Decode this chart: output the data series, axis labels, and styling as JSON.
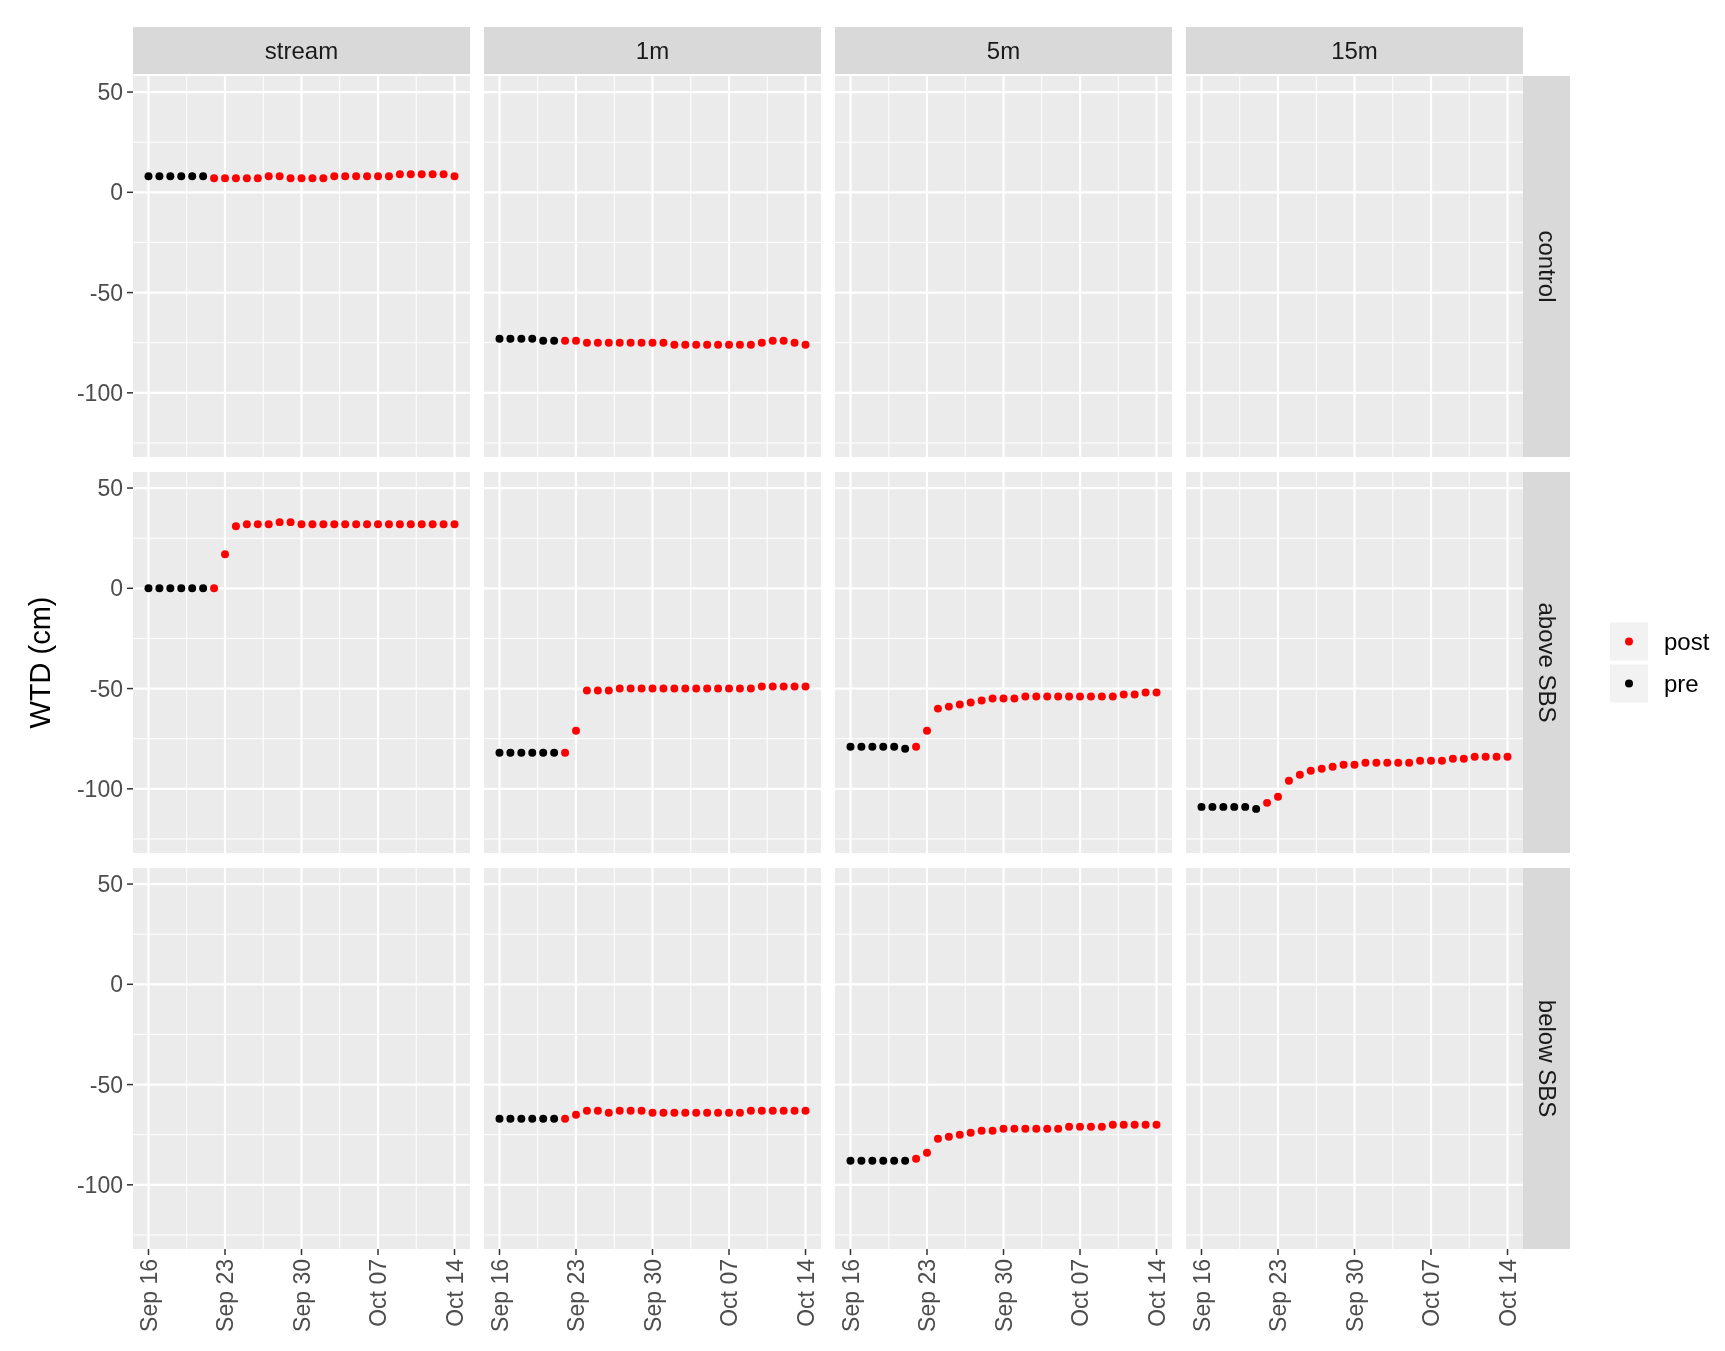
{
  "chart_data": [
    {
      "type": "scatter",
      "title": "stream",
      "x": [
        "--09-16",
        "--09-17",
        "--09-18",
        "--09-19",
        "--09-20",
        "--09-21",
        "--09-22",
        "--09-23",
        "--09-24",
        "--09-25",
        "--09-26",
        "--09-27",
        "--09-28",
        "--09-29",
        "--09-30",
        "--10-01",
        "--10-02",
        "--10-03",
        "--10-04",
        "--10-05",
        "--10-06",
        "--10-07",
        "--10-08",
        "--10-09",
        "--10-10",
        "--10-11",
        "--10-12",
        "--10-13",
        "--10-14"
      ],
      "series": [
        {
          "color": "#ff0000",
          "values": [
            null,
            null,
            null,
            null,
            null,
            null,
            7,
            7,
            7,
            7,
            7,
            8,
            8,
            7,
            7,
            7,
            7,
            8,
            8,
            8,
            8,
            8,
            8,
            9,
            9,
            9,
            9,
            9,
            8
          ]
        },
        {
          "color": "#000000",
          "values": [
            8,
            8,
            8,
            8,
            8,
            8,
            null,
            null,
            null,
            null,
            null,
            null,
            null,
            null,
            null,
            null,
            null,
            null,
            null,
            null,
            null,
            null,
            null,
            null,
            null,
            null,
            null,
            null,
            null
          ]
        }
      ],
      "xlim": [
        "--09-14T14:00",
        "--10-15T10:00"
      ],
      "ylim": [
        -132,
        58
      ],
      "xticks": [
        {
          "value": "--09-16",
          "label": null
        },
        {
          "value": "--09-23",
          "label": null
        },
        {
          "value": "--09-30",
          "label": null
        },
        {
          "value": "--10-07",
          "label": null
        },
        {
          "value": "--10-14",
          "label": null
        }
      ],
      "yticks": [
        -100,
        -50,
        0,
        50
      ],
      "grid": true,
      "marker": "circle",
      "tick_labels": "y"
    },
    {
      "type": "scatter",
      "title": "1m",
      "x": [
        "--09-16",
        "--09-17",
        "--09-18",
        "--09-19",
        "--09-20",
        "--09-21",
        "--09-22",
        "--09-23",
        "--09-24",
        "--09-25",
        "--09-26",
        "--09-27",
        "--09-28",
        "--09-29",
        "--09-30",
        "--10-01",
        "--10-02",
        "--10-03",
        "--10-04",
        "--10-05",
        "--10-06",
        "--10-07",
        "--10-08",
        "--10-09",
        "--10-10",
        "--10-11",
        "--10-12",
        "--10-13",
        "--10-14"
      ],
      "series": [
        {
          "color": "#ff0000",
          "values": [
            null,
            null,
            null,
            null,
            null,
            null,
            -74,
            -74,
            -75,
            -75,
            -75,
            -75,
            -75,
            -75,
            -75,
            -75,
            -76,
            -76,
            -76,
            -76,
            -76,
            -76,
            -76,
            -76,
            -75,
            -74,
            -74,
            -75,
            -76
          ]
        },
        {
          "color": "#000000",
          "values": [
            -73,
            -73,
            -73,
            -73,
            -74,
            -74,
            null,
            null,
            null,
            null,
            null,
            null,
            null,
            null,
            null,
            null,
            null,
            null,
            null,
            null,
            null,
            null,
            null,
            null,
            null,
            null,
            null,
            null,
            null
          ]
        }
      ],
      "xlim": [
        "--09-14T14:00",
        "--10-15T10:00"
      ],
      "ylim": [
        -132,
        58
      ],
      "xticks": [
        {
          "value": "--09-16",
          "label": null
        },
        {
          "value": "--09-23",
          "label": null
        },
        {
          "value": "--09-30",
          "label": null
        },
        {
          "value": "--10-07",
          "label": null
        },
        {
          "value": "--10-14",
          "label": null
        }
      ],
      "yticks": [
        -100,
        -50,
        0,
        50
      ],
      "grid": true,
      "marker": "circle",
      "tick_labels": false
    },
    {
      "type": "scatter",
      "title": "5m",
      "xlim": [
        "--09-14T14:00",
        "--10-15T10:00"
      ],
      "ylim": [
        -132,
        58
      ],
      "xticks": [
        {
          "value": "--09-16",
          "label": null
        },
        {
          "value": "--09-23",
          "label": null
        },
        {
          "value": "--09-30",
          "label": null
        },
        {
          "value": "--10-07",
          "label": null
        },
        {
          "value": "--10-14",
          "label": null
        }
      ],
      "yticks": [
        -100,
        -50,
        0,
        50
      ],
      "grid": true,
      "tick_labels": false
    },
    {
      "type": "scatter",
      "title": "15m",
      "annotations": [
        "control"
      ],
      "xlim": [
        "--09-14T14:00",
        "--10-15T10:00"
      ],
      "ylim": [
        -132,
        58
      ],
      "xticks": [
        {
          "value": "--09-16",
          "label": null
        },
        {
          "value": "--09-23",
          "label": null
        },
        {
          "value": "--09-30",
          "label": null
        },
        {
          "value": "--10-07",
          "label": null
        },
        {
          "value": "--10-14",
          "label": null
        }
      ],
      "yticks": [
        -100,
        -50,
        0,
        50
      ],
      "grid": true,
      "tick_labels": false
    },
    {
      "type": "scatter",
      "ylabel": "WTD (cm)",
      "x": [
        "--09-16",
        "--09-17",
        "--09-18",
        "--09-19",
        "--09-20",
        "--09-21",
        "--09-22",
        "--09-23",
        "--09-24",
        "--09-25",
        "--09-26",
        "--09-27",
        "--09-28",
        "--09-29",
        "--09-30",
        "--10-01",
        "--10-02",
        "--10-03",
        "--10-04",
        "--10-05",
        "--10-06",
        "--10-07",
        "--10-08",
        "--10-09",
        "--10-10",
        "--10-11",
        "--10-12",
        "--10-13",
        "--10-14"
      ],
      "series": [
        {
          "color": "#ff0000",
          "values": [
            null,
            null,
            null,
            null,
            null,
            null,
            0,
            17,
            31,
            32,
            32,
            32,
            33,
            33,
            32,
            32,
            32,
            32,
            32,
            32,
            32,
            32,
            32,
            32,
            32,
            32,
            32,
            32,
            32
          ]
        },
        {
          "color": "#000000",
          "values": [
            0,
            0,
            0,
            0,
            0,
            0,
            null,
            null,
            null,
            null,
            null,
            null,
            null,
            null,
            null,
            null,
            null,
            null,
            null,
            null,
            null,
            null,
            null,
            null,
            null,
            null,
            null,
            null,
            null
          ]
        }
      ],
      "xlim": [
        "--09-14T14:00",
        "--10-15T10:00"
      ],
      "ylim": [
        -132,
        58
      ],
      "xticks": [
        {
          "value": "--09-16",
          "label": null
        },
        {
          "value": "--09-23",
          "label": null
        },
        {
          "value": "--09-30",
          "label": null
        },
        {
          "value": "--10-07",
          "label": null
        },
        {
          "value": "--10-14",
          "label": null
        }
      ],
      "yticks": [
        -100,
        -50,
        0,
        50
      ],
      "grid": true,
      "marker": "circle",
      "tick_labels": "y"
    },
    {
      "type": "scatter",
      "x": [
        "--09-16",
        "--09-17",
        "--09-18",
        "--09-19",
        "--09-20",
        "--09-21",
        "--09-22",
        "--09-23",
        "--09-24",
        "--09-25",
        "--09-26",
        "--09-27",
        "--09-28",
        "--09-29",
        "--09-30",
        "--10-01",
        "--10-02",
        "--10-03",
        "--10-04",
        "--10-05",
        "--10-06",
        "--10-07",
        "--10-08",
        "--10-09",
        "--10-10",
        "--10-11",
        "--10-12",
        "--10-13",
        "--10-14"
      ],
      "series": [
        {
          "color": "#ff0000",
          "values": [
            null,
            null,
            null,
            null,
            null,
            null,
            -82,
            -71,
            -51,
            -51,
            -51,
            -50,
            -50,
            -50,
            -50,
            -50,
            -50,
            -50,
            -50,
            -50,
            -50,
            -50,
            -50,
            -50,
            -49,
            -49,
            -49,
            -49,
            -49
          ]
        },
        {
          "color": "#000000",
          "values": [
            -82,
            -82,
            -82,
            -82,
            -82,
            -82,
            null,
            null,
            null,
            null,
            null,
            null,
            null,
            null,
            null,
            null,
            null,
            null,
            null,
            null,
            null,
            null,
            null,
            null,
            null,
            null,
            null,
            null,
            null
          ]
        }
      ],
      "xlim": [
        "--09-14T14:00",
        "--10-15T10:00"
      ],
      "ylim": [
        -132,
        58
      ],
      "xticks": [
        {
          "value": "--09-16",
          "label": null
        },
        {
          "value": "--09-23",
          "label": null
        },
        {
          "value": "--09-30",
          "label": null
        },
        {
          "value": "--10-07",
          "label": null
        },
        {
          "value": "--10-14",
          "label": null
        }
      ],
      "yticks": [
        -100,
        -50,
        0,
        50
      ],
      "grid": true,
      "marker": "circle",
      "tick_labels": false
    },
    {
      "type": "scatter",
      "x": [
        "--09-16",
        "--09-17",
        "--09-18",
        "--09-19",
        "--09-20",
        "--09-21",
        "--09-22",
        "--09-23",
        "--09-24",
        "--09-25",
        "--09-26",
        "--09-27",
        "--09-28",
        "--09-29",
        "--09-30",
        "--10-01",
        "--10-02",
        "--10-03",
        "--10-04",
        "--10-05",
        "--10-06",
        "--10-07",
        "--10-08",
        "--10-09",
        "--10-10",
        "--10-11",
        "--10-12",
        "--10-13",
        "--10-14"
      ],
      "series": [
        {
          "color": "#ff0000",
          "values": [
            null,
            null,
            null,
            null,
            null,
            null,
            -79,
            -71,
            -60,
            -59,
            -58,
            -57,
            -56,
            -55,
            -55,
            -55,
            -54,
            -54,
            -54,
            -54,
            -54,
            -54,
            -54,
            -54,
            -54,
            -53,
            -53,
            -52,
            -52
          ]
        },
        {
          "color": "#000000",
          "values": [
            -79,
            -79,
            -79,
            -79,
            -79,
            -80,
            null,
            null,
            null,
            null,
            null,
            null,
            null,
            null,
            null,
            null,
            null,
            null,
            null,
            null,
            null,
            null,
            null,
            null,
            null,
            null,
            null,
            null,
            null
          ]
        }
      ],
      "xlim": [
        "--09-14T14:00",
        "--10-15T10:00"
      ],
      "ylim": [
        -132,
        58
      ],
      "xticks": [
        {
          "value": "--09-16",
          "label": null
        },
        {
          "value": "--09-23",
          "label": null
        },
        {
          "value": "--09-30",
          "label": null
        },
        {
          "value": "--10-07",
          "label": null
        },
        {
          "value": "--10-14",
          "label": null
        }
      ],
      "yticks": [
        -100,
        -50,
        0,
        50
      ],
      "grid": true,
      "marker": "circle",
      "tick_labels": false
    },
    {
      "type": "scatter",
      "annotations": [
        "above SBS"
      ],
      "legend": "right",
      "x": [
        "--09-16",
        "--09-17",
        "--09-18",
        "--09-19",
        "--09-20",
        "--09-21",
        "--09-22",
        "--09-23",
        "--09-24",
        "--09-25",
        "--09-26",
        "--09-27",
        "--09-28",
        "--09-29",
        "--09-30",
        "--10-01",
        "--10-02",
        "--10-03",
        "--10-04",
        "--10-05",
        "--10-06",
        "--10-07",
        "--10-08",
        "--10-09",
        "--10-10",
        "--10-11",
        "--10-12",
        "--10-13",
        "--10-14"
      ],
      "series": [
        {
          "name": "post",
          "color": "#ff0000",
          "values": [
            null,
            null,
            null,
            null,
            null,
            null,
            -107,
            -104,
            -96,
            -93,
            -91,
            -90,
            -89,
            -88,
            -88,
            -87,
            -87,
            -87,
            -87,
            -87,
            -86,
            -86,
            -86,
            -85,
            -85,
            -84,
            -84,
            -84,
            -84
          ]
        },
        {
          "name": "pre",
          "color": "#000000",
          "values": [
            -109,
            -109,
            -109,
            -109,
            -109,
            -110,
            null,
            null,
            null,
            null,
            null,
            null,
            null,
            null,
            null,
            null,
            null,
            null,
            null,
            null,
            null,
            null,
            null,
            null,
            null,
            null,
            null,
            null,
            null
          ]
        }
      ],
      "xlim": [
        "--09-14T14:00",
        "--10-15T10:00"
      ],
      "ylim": [
        -132,
        58
      ],
      "xticks": [
        {
          "value": "--09-16",
          "label": null
        },
        {
          "value": "--09-23",
          "label": null
        },
        {
          "value": "--09-30",
          "label": null
        },
        {
          "value": "--10-07",
          "label": null
        },
        {
          "value": "--10-14",
          "label": null
        }
      ],
      "yticks": [
        -100,
        -50,
        0,
        50
      ],
      "grid": true,
      "marker": "circle",
      "tick_labels": false
    },
    {
      "type": "scatter",
      "xlim": [
        "--09-14T14:00",
        "--10-15T10:00"
      ],
      "ylim": [
        -132,
        58
      ],
      "xticks": [
        {
          "value": "--09-16",
          "label": "Sep 16"
        },
        {
          "value": "--09-23",
          "label": "Sep 23"
        },
        {
          "value": "--09-30",
          "label": "Sep 30"
        },
        {
          "value": "--10-07",
          "label": "Oct 07"
        },
        {
          "value": "--10-14",
          "label": "Oct 14"
        }
      ],
      "yticks": [
        -100,
        -50,
        0,
        50
      ],
      "grid": true
    },
    {
      "type": "scatter",
      "x": [
        "--09-16",
        "--09-17",
        "--09-18",
        "--09-19",
        "--09-20",
        "--09-21",
        "--09-22",
        "--09-23",
        "--09-24",
        "--09-25",
        "--09-26",
        "--09-27",
        "--09-28",
        "--09-29",
        "--09-30",
        "--10-01",
        "--10-02",
        "--10-03",
        "--10-04",
        "--10-05",
        "--10-06",
        "--10-07",
        "--10-08",
        "--10-09",
        "--10-10",
        "--10-11",
        "--10-12",
        "--10-13",
        "--10-14"
      ],
      "series": [
        {
          "color": "#ff0000",
          "values": [
            null,
            null,
            null,
            null,
            null,
            null,
            -67,
            -65,
            -63,
            -63,
            -64,
            -63,
            -63,
            -63,
            -64,
            -64,
            -64,
            -64,
            -64,
            -64,
            -64,
            -64,
            -64,
            -63,
            -63,
            -63,
            -63,
            -63,
            -63
          ]
        },
        {
          "color": "#000000",
          "values": [
            -67,
            -67,
            -67,
            -67,
            -67,
            -67,
            null,
            null,
            null,
            null,
            null,
            null,
            null,
            null,
            null,
            null,
            null,
            null,
            null,
            null,
            null,
            null,
            null,
            null,
            null,
            null,
            null,
            null,
            null
          ]
        }
      ],
      "xlim": [
        "--09-14T14:00",
        "--10-15T10:00"
      ],
      "ylim": [
        -132,
        58
      ],
      "xticks": [
        {
          "value": "--09-16",
          "label": "Sep 16"
        },
        {
          "value": "--09-23",
          "label": "Sep 23"
        },
        {
          "value": "--09-30",
          "label": "Sep 30"
        },
        {
          "value": "--10-07",
          "label": "Oct 07"
        },
        {
          "value": "--10-14",
          "label": "Oct 14"
        }
      ],
      "yticks": [
        -100,
        -50,
        0,
        50
      ],
      "grid": true,
      "marker": "circle",
      "tick_labels": "x"
    },
    {
      "type": "scatter",
      "x": [
        "--09-16",
        "--09-17",
        "--09-18",
        "--09-19",
        "--09-20",
        "--09-21",
        "--09-22",
        "--09-23",
        "--09-24",
        "--09-25",
        "--09-26",
        "--09-27",
        "--09-28",
        "--09-29",
        "--09-30",
        "--10-01",
        "--10-02",
        "--10-03",
        "--10-04",
        "--10-05",
        "--10-06",
        "--10-07",
        "--10-08",
        "--10-09",
        "--10-10",
        "--10-11",
        "--10-12",
        "--10-13",
        "--10-14"
      ],
      "series": [
        {
          "color": "#ff0000",
          "values": [
            null,
            null,
            null,
            null,
            null,
            null,
            -87,
            -84,
            -77,
            -76,
            -75,
            -74,
            -73,
            -73,
            -72,
            -72,
            -72,
            -72,
            -72,
            -72,
            -71,
            -71,
            -71,
            -71,
            -70,
            -70,
            -70,
            -70,
            -70
          ]
        },
        {
          "color": "#000000",
          "values": [
            -88,
            -88,
            -88,
            -88,
            -88,
            -88,
            null,
            null,
            null,
            null,
            null,
            null,
            null,
            null,
            null,
            null,
            null,
            null,
            null,
            null,
            null,
            null,
            null,
            null,
            null,
            null,
            null,
            null,
            null
          ]
        }
      ],
      "xlim": [
        "--09-14T14:00",
        "--10-15T10:00"
      ],
      "ylim": [
        -132,
        58
      ],
      "xticks": [
        {
          "value": "--09-16",
          "label": "Sep 16"
        },
        {
          "value": "--09-23",
          "label": "Sep 23"
        },
        {
          "value": "--09-30",
          "label": "Sep 30"
        },
        {
          "value": "--10-07",
          "label": "Oct 07"
        },
        {
          "value": "--10-14",
          "label": "Oct 14"
        }
      ],
      "yticks": [
        -100,
        -50,
        0,
        50
      ],
      "grid": true,
      "marker": "circle",
      "tick_labels": "x"
    },
    {
      "type": "scatter",
      "annotations": [
        "below SBS"
      ],
      "xlim": [
        "--09-14T14:00",
        "--10-15T10:00"
      ],
      "ylim": [
        -132,
        58
      ],
      "xticks": [
        {
          "value": "--09-16",
          "label": "Sep 16"
        },
        {
          "value": "--09-23",
          "label": "Sep 23"
        },
        {
          "value": "--09-30",
          "label": "Sep 30"
        },
        {
          "value": "--10-07",
          "label": "Oct 07"
        },
        {
          "value": "--10-14",
          "label": "Oct 14"
        }
      ],
      "yticks": [
        -100,
        -50,
        0,
        50
      ],
      "grid": true,
      "tick_labels": "x"
    }
  ]
}
